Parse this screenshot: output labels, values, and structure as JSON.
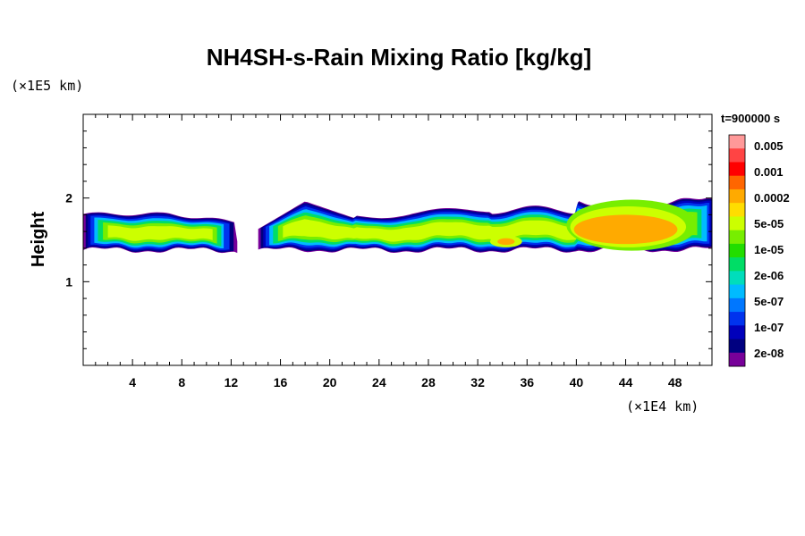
{
  "chart_data": {
    "type": "heatmap",
    "title": "NH4SH-s-Rain Mixing Ratio [kg/kg]",
    "xlabel": "",
    "ylabel": "Height",
    "x_unit": "(×1E4 km)",
    "y_unit": "(×1E5 km)",
    "time_label": "t=900000 s",
    "xlim": [
      0,
      51
    ],
    "ylim": [
      0,
      3
    ],
    "x_ticks": [
      4,
      8,
      12,
      16,
      20,
      24,
      28,
      32,
      36,
      40,
      44,
      48
    ],
    "x_tick_labels": [
      "4",
      "8",
      "12",
      "16",
      "20",
      "24",
      "28",
      "32",
      "36",
      "40",
      "44",
      "48"
    ],
    "y_ticks": [
      1,
      2
    ],
    "y_tick_labels": [
      "1",
      "2"
    ],
    "colorbar": {
      "labels": [
        "0.005",
        "0.001",
        "0.0002",
        "5e-05",
        "1e-05",
        "2e-06",
        "5e-07",
        "1e-07",
        "2e-08"
      ],
      "colors": [
        "#ff9999",
        "#ff4444",
        "#ff0000",
        "#ff6600",
        "#ffaa00",
        "#ffdd00",
        "#ccff00",
        "#77ee00",
        "#22dd00",
        "#00dd66",
        "#00ddbb",
        "#00bbff",
        "#0077ff",
        "#0033ee",
        "#0000bb",
        "#000080",
        "#770099"
      ]
    },
    "field_summary": {
      "layer_bottom_height": [
        1.35,
        1.4
      ],
      "layer_top_height": [
        1.65,
        2.0
      ],
      "layer_gap_x": [
        12.5,
        14.2
      ],
      "peak_region_x": [
        40,
        49
      ],
      "peak_region_height": [
        1.45,
        1.9
      ],
      "peak_value": "0.0002"
    }
  }
}
